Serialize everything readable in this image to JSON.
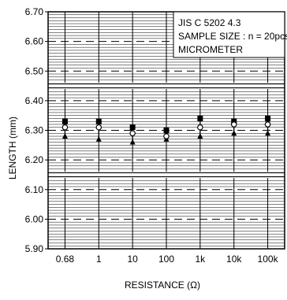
{
  "chart_data": {
    "type": "scatter",
    "title": "",
    "xlabel": "RESISTANCE  (Ω)",
    "ylabel": "LENGTH (mm)",
    "categories": [
      "0.68",
      "1",
      "10",
      "100",
      "1k",
      "10k",
      "100k"
    ],
    "ylim": [
      5.9,
      6.7
    ],
    "yticks": [
      "5.90",
      "6.00",
      "6.10",
      "6.20",
      "6.30",
      "6.40",
      "6.50",
      "6.60",
      "6.70"
    ],
    "grid": true,
    "annotation_lines": [
      "JIS C 5202 4.3",
      "SAMPLE SIZE : n = 20pcs",
      "MICROMETER"
    ],
    "spec_limits": {
      "upper": 6.45,
      "lower": 6.15
    },
    "series": [
      {
        "marker": "filled-square",
        "values": [
          6.33,
          6.33,
          6.31,
          6.3,
          6.34,
          6.33,
          6.34
        ]
      },
      {
        "marker": "open-circle",
        "values": [
          6.31,
          6.31,
          6.29,
          6.28,
          6.31,
          6.32,
          6.32
        ]
      },
      {
        "marker": "filled-triangle",
        "values": [
          6.28,
          6.27,
          6.26,
          6.27,
          6.28,
          6.29,
          6.29
        ]
      }
    ]
  }
}
